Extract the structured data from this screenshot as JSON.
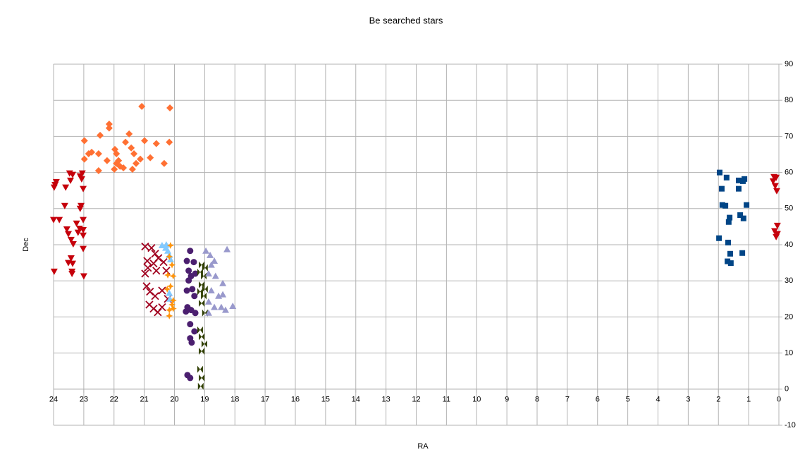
{
  "chart_data": {
    "type": "scatter",
    "title": "Be searched stars",
    "x_label": "RA",
    "y_label": "Dec",
    "xlim": [
      24,
      0
    ],
    "xticks": [
      24,
      23,
      22,
      21,
      20,
      19,
      18,
      17,
      16,
      15,
      14,
      13,
      12,
      11,
      10,
      9,
      8,
      7,
      6,
      5,
      4,
      3,
      2,
      1,
      0
    ],
    "ylim": [
      -10,
      90
    ],
    "yticks": [
      -10,
      0,
      10,
      20,
      30,
      40,
      50,
      60,
      70,
      80,
      90
    ],
    "grid": true,
    "series": [
      {
        "color": "#004586",
        "marker": "square",
        "x": [
          1.96,
          1.73,
          1.89,
          1.87,
          1.77,
          1.98,
          1.7,
          1.59,
          1.61,
          1.68,
          1.66,
          1.63,
          1.33,
          1.14,
          1.19,
          1.33,
          1.07,
          1.28,
          1.17,
          1.21
        ],
        "values": [
          60.0,
          58.6,
          55.5,
          51.0,
          50.8,
          41.8,
          35.4,
          34.9,
          37.5,
          40.6,
          46.3,
          47.5,
          57.8,
          58.2,
          57.6,
          55.5,
          51.0,
          48.2,
          47.3,
          37.7
        ]
      },
      {
        "color": "#c5000b",
        "marker": "triangle-down",
        "x": [
          0.16,
          0.09,
          0.19,
          0.12,
          0.07,
          0.05,
          0.14,
          0.05,
          0.09,
          23.95,
          23.91,
          23.98,
          24.0,
          23.81,
          23.98,
          23.63,
          23.6,
          23.56,
          23.51,
          23.47,
          23.37,
          23.44,
          23.42,
          23.35,
          23.37,
          23.42,
          23.51,
          23.39,
          23.39,
          23.24,
          23.14,
          23.19,
          23.09,
          23.12,
          23.05,
          23.12,
          23.02,
          23.07,
          23.02,
          23.02,
          23.02,
          23.02,
          23.0
        ],
        "values": [
          58.8,
          58.6,
          57.6,
          56.3,
          54.9,
          45.3,
          43.8,
          43.0,
          42.2,
          56.6,
          57.4,
          55.9,
          46.9,
          46.9,
          32.6,
          50.8,
          55.9,
          44.3,
          43.0,
          59.8,
          59.4,
          57.8,
          41.4,
          40.2,
          34.8,
          36.3,
          35.0,
          32.6,
          32.0,
          45.9,
          44.5,
          43.4,
          50.8,
          50.0,
          59.8,
          59.0,
          55.5,
          58.2,
          46.9,
          44.1,
          42.6,
          38.9,
          31.3
        ]
      },
      {
        "color": "#ff7033",
        "marker": "diamond",
        "x": [
          22.98,
          22.98,
          22.84,
          22.74,
          22.51,
          22.46,
          22.51,
          22.23,
          22.16,
          22.16,
          21.97,
          21.92,
          21.62,
          21.5,
          21.43,
          21.34,
          21.39,
          21.27,
          21.13,
          21.08,
          20.99,
          20.8,
          20.6,
          20.34,
          20.17,
          20.15,
          21.92,
          21.8,
          21.99,
          21.69,
          21.85
        ],
        "values": [
          68.8,
          63.7,
          65.2,
          65.6,
          65.2,
          70.3,
          60.5,
          63.3,
          73.4,
          72.3,
          66.4,
          65.2,
          68.4,
          70.7,
          66.8,
          65.2,
          60.9,
          62.5,
          63.7,
          78.3,
          68.8,
          64.1,
          68.0,
          62.5,
          68.4,
          77.9,
          62.5,
          61.7,
          60.9,
          61.3,
          63.3
        ]
      },
      {
        "color": "#a0001f",
        "marker": "x",
        "x": [
          20.97,
          20.76,
          20.64,
          20.9,
          20.69,
          20.53,
          20.88,
          20.6,
          20.97,
          20.36,
          20.27,
          20.92,
          20.81,
          20.64,
          20.41,
          20.83,
          20.69,
          20.55,
          20.41,
          20.22
        ],
        "values": [
          39.5,
          39.1,
          37.5,
          35.5,
          34.8,
          36.3,
          33.6,
          32.8,
          32.0,
          35.2,
          32.8,
          28.5,
          27.0,
          25.8,
          27.3,
          23.4,
          22.3,
          21.3,
          22.7,
          25.0
        ]
      },
      {
        "color": "#83caff",
        "marker": "triangle",
        "x": [
          20.41,
          20.29,
          20.22,
          20.17,
          20.13,
          20.27,
          20.17,
          20.15
        ],
        "values": [
          39.8,
          39.1,
          38.3,
          37.1,
          35.9,
          40.0,
          26.6,
          25.0
        ]
      },
      {
        "color": "#ff950e",
        "marker": "star",
        "x": [
          20.13,
          20.17,
          20.08,
          20.22,
          20.04,
          20.13,
          20.24,
          20.04,
          20.08,
          20.17,
          20.04,
          20.17
        ],
        "values": [
          39.8,
          36.7,
          34.4,
          31.6,
          31.3,
          28.5,
          27.7,
          24.6,
          23.4,
          21.9,
          22.3,
          20.3
        ]
      },
      {
        "color": "#4b1f6f",
        "marker": "circle",
        "x": [
          19.48,
          19.59,
          19.36,
          19.53,
          19.31,
          19.45,
          19.59,
          19.41,
          19.34,
          19.57,
          19.45,
          19.31,
          19.62,
          19.48,
          19.34,
          19.48,
          19.43,
          19.57,
          19.48,
          19.53
        ],
        "values": [
          38.3,
          35.5,
          35.2,
          32.8,
          32.0,
          31.3,
          27.3,
          27.7,
          25.8,
          22.7,
          21.9,
          21.1,
          21.5,
          18.0,
          16.0,
          14.1,
          12.9,
          3.9,
          3.1,
          30.1
        ]
      },
      {
        "color": "#314004",
        "marker": "bowtie",
        "x": [
          19.1,
          18.99,
          19.15,
          19.03,
          19.1,
          18.99,
          19.15,
          19.03,
          19.1,
          18.99,
          19.15,
          19.1,
          19.01,
          19.1,
          19.15,
          19.1,
          19.13
        ],
        "values": [
          34.4,
          33.6,
          32.4,
          31.3,
          28.9,
          27.7,
          27.0,
          25.8,
          23.8,
          21.1,
          16.4,
          14.5,
          12.5,
          10.5,
          5.5,
          3.1,
          0.8
        ]
      },
      {
        "color": "#9999cc",
        "marker": "triangle",
        "x": [
          18.96,
          18.82,
          18.68,
          18.78,
          18.87,
          18.64,
          18.4,
          18.26,
          18.78,
          18.54,
          18.4,
          18.87,
          18.68,
          18.45,
          18.31,
          18.07,
          18.87
        ],
        "values": [
          38.3,
          37.1,
          35.5,
          34.4,
          32.0,
          31.3,
          29.3,
          38.7,
          27.3,
          25.8,
          26.2,
          24.2,
          22.7,
          22.7,
          21.9,
          23.0,
          21.1
        ]
      }
    ]
  }
}
